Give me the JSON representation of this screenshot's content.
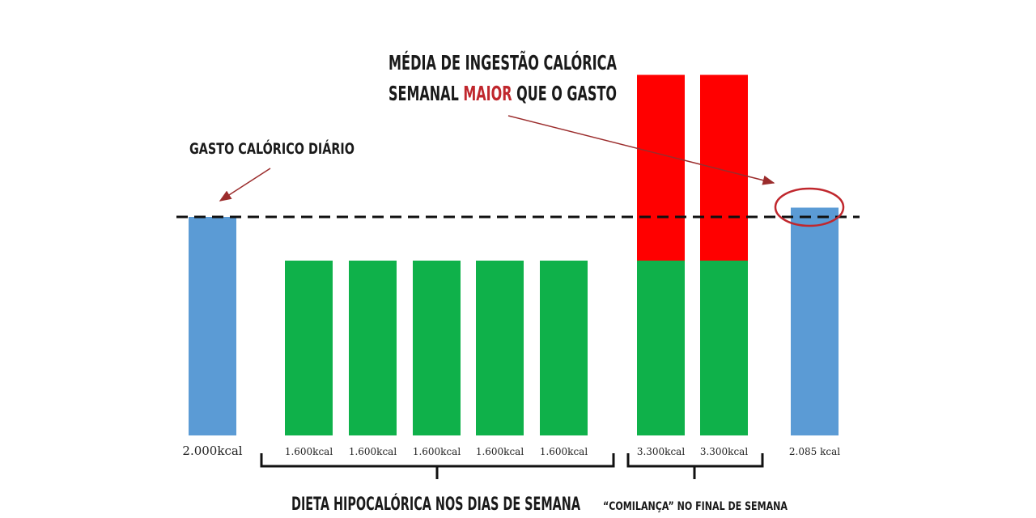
{
  "chart_data": {
    "type": "bar",
    "categories": [
      "2.000kcal",
      "1.600kcal",
      "1.600kcal",
      "1.600kcal",
      "1.600kcal",
      "1.600kcal",
      "3.300kcal",
      "3.300kcal",
      "2.085 kcal"
    ],
    "values": [
      2000,
      1600,
      1600,
      1600,
      1600,
      1600,
      3300,
      3300,
      2085
    ],
    "segments": [
      {
        "base": 2000,
        "surplus": 0,
        "base_color": "#5b9bd5",
        "surplus_color": "#ff0000"
      },
      {
        "base": 1600,
        "surplus": 0,
        "base_color": "#0fb14a",
        "surplus_color": "#ff0000"
      },
      {
        "base": 1600,
        "surplus": 0,
        "base_color": "#0fb14a",
        "surplus_color": "#ff0000"
      },
      {
        "base": 1600,
        "surplus": 0,
        "base_color": "#0fb14a",
        "surplus_color": "#ff0000"
      },
      {
        "base": 1600,
        "surplus": 0,
        "base_color": "#0fb14a",
        "surplus_color": "#ff0000"
      },
      {
        "base": 1600,
        "surplus": 0,
        "base_color": "#0fb14a",
        "surplus_color": "#ff0000"
      },
      {
        "base": 1600,
        "surplus": 1700,
        "base_color": "#0fb14a",
        "surplus_color": "#ff0000"
      },
      {
        "base": 1600,
        "surplus": 1700,
        "base_color": "#0fb14a",
        "surplus_color": "#ff0000"
      },
      {
        "base": 2085,
        "surplus": 0,
        "base_color": "#5b9bd5",
        "surplus_color": "#ff0000"
      }
    ],
    "reference_line": {
      "value": 2000,
      "style": "dashed"
    },
    "annotations": {
      "daily_expenditure": "GASTO CALÓRICO DIÁRIO",
      "average_line1": "MÉDIA DE INGESTÃO CALÓRICA",
      "average_line2_pre": "SEMANAL ",
      "average_line2_highlight": "MAIOR",
      "average_line2_post": " QUE O GASTO"
    },
    "groups": [
      {
        "label": "DIETA HIPOCALÓRICA NOS DIAS DE SEMANA"
      },
      {
        "label": "“COMILANÇA” NO FINAL DE SEMANA"
      }
    ],
    "colors": {
      "highlight_text": "#c0272d",
      "arrow": "#9b2c2c",
      "circle": "#c0272d"
    }
  }
}
